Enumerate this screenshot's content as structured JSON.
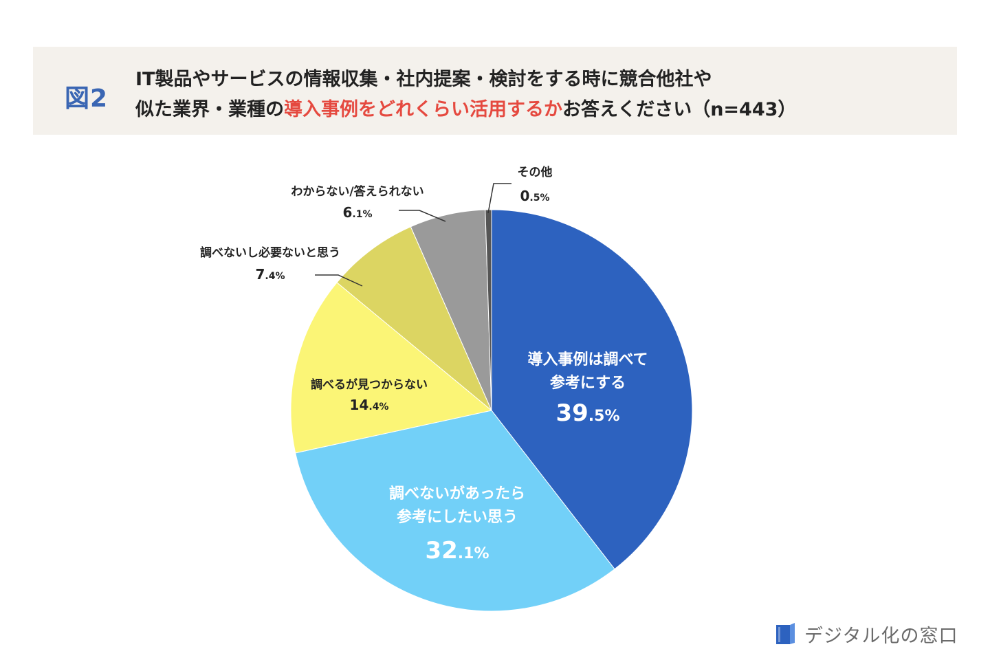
{
  "header": {
    "figure_label": "図2",
    "title_line1": "IT製品やサービスの情報収集・社内提案・検討をする時に競合他社や",
    "title_line2_prefix": "似た業界・業種の",
    "title_line2_highlight": "導入事例をどれくらい活用するか",
    "title_line2_suffix": "お答えください（n=443）",
    "highlight_color": "#e5493f"
  },
  "chart_data": {
    "type": "pie",
    "unit": "%",
    "start": "12 o'clock, clockwise",
    "slices": [
      {
        "label_lines": [
          "導入事例は調べて",
          "参考にする"
        ],
        "value": 39.5,
        "value_int": "39",
        "value_dec": ".5%",
        "color": "#2d62bf",
        "label_color": "#ffffff",
        "label_position": "inside"
      },
      {
        "label_lines": [
          "調べないがあったら",
          "参考にしたい思う"
        ],
        "value": 32.1,
        "value_int": "32",
        "value_dec": ".1%",
        "color": "#72d0f8",
        "label_color": "#ffffff",
        "label_position": "inside"
      },
      {
        "label_lines": [
          "調べるが見つからない"
        ],
        "value": 14.4,
        "value_int": "14",
        "value_dec": ".4%",
        "color": "#fbf576",
        "label_color": "#222222",
        "label_position": "inside"
      },
      {
        "label_lines": [
          "調べないし必要ないと思う"
        ],
        "value": 7.4,
        "value_int": "7",
        "value_dec": ".4%",
        "color": "#dcd562",
        "label_color": "#222222",
        "label_position": "outside"
      },
      {
        "label_lines": [
          "わからない/答えられない"
        ],
        "value": 6.1,
        "value_int": "6",
        "value_dec": ".1%",
        "color": "#9a9a9a",
        "label_color": "#222222",
        "label_position": "outside"
      },
      {
        "label_lines": [
          "その他"
        ],
        "value": 0.5,
        "value_int": "0",
        "value_dec": ".5%",
        "color": "#555555",
        "label_color": "#222222",
        "label_position": "outside"
      }
    ]
  },
  "brand": {
    "name": "デジタル化の窓口",
    "logo_icon": "book-icon"
  }
}
